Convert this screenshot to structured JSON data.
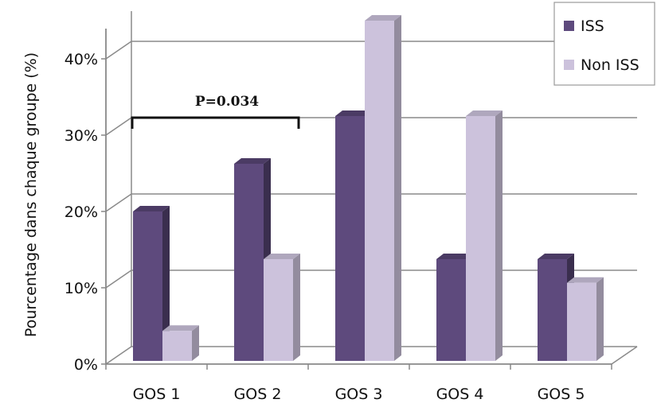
{
  "chart_data": {
    "type": "bar",
    "title": "",
    "xlabel": "",
    "ylabel": "Pourcentage dans chaque groupe (%)",
    "categories": [
      "GOS 1",
      "GOS 2",
      "GOS 3",
      "GOS 4",
      "GOS 5"
    ],
    "series": [
      {
        "name": "ISS",
        "values": [
          18.75,
          25,
          31.25,
          12.5,
          12.5
        ],
        "color": "#5e4a7d"
      },
      {
        "name": "Non ISS",
        "values": [
          3.1,
          12.5,
          43.75,
          31.25,
          9.4
        ],
        "color": "#ccc2dc"
      }
    ],
    "ylim": [
      0,
      40
    ],
    "ytick_labels": [
      "0%",
      "10%",
      "20%",
      "30%",
      "40%"
    ],
    "grid": true,
    "legend_position": "top-right",
    "style": "3d",
    "annotation": {
      "text": "P=0.034",
      "spans": [
        "GOS 1",
        "GOS 2"
      ]
    }
  }
}
